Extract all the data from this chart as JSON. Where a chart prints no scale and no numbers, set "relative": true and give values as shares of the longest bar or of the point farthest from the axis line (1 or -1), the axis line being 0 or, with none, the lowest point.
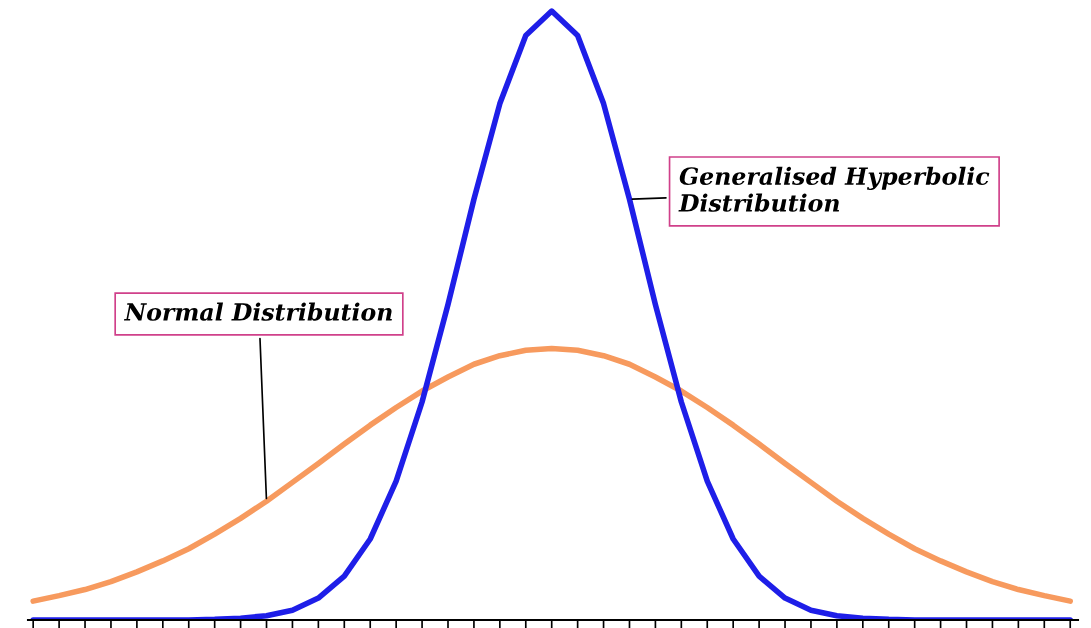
{
  "chart_data": {
    "type": "line",
    "relative": true,
    "legend": false,
    "grid": false,
    "marker": "none",
    "line_style": "solid",
    "categories": [
      null,
      null,
      null,
      null,
      null,
      null,
      null,
      null,
      null,
      null,
      null,
      null,
      null,
      null,
      null,
      null,
      null,
      null,
      null,
      null,
      null,
      null,
      null,
      null,
      null,
      null,
      null,
      null,
      null,
      null,
      null,
      null,
      null,
      null,
      null,
      null,
      null,
      null,
      null,
      null,
      null
    ],
    "series": [
      {
        "name": "Normal Distribution",
        "color": "#f79a5e",
        "values": [
          0.031,
          0.04,
          0.05,
          0.063,
          0.079,
          0.097,
          0.117,
          0.141,
          0.167,
          0.195,
          0.226,
          0.257,
          0.289,
          0.32,
          0.349,
          0.376,
          0.399,
          0.42,
          0.434,
          0.443,
          0.446,
          0.443,
          0.434,
          0.42,
          0.399,
          0.376,
          0.349,
          0.32,
          0.289,
          0.257,
          0.226,
          0.195,
          0.167,
          0.141,
          0.117,
          0.097,
          0.079,
          0.063,
          0.05,
          0.04,
          0.031
        ]
      },
      {
        "name": "Generalised Hyperbolic Distribution",
        "color": "#1e1ee8",
        "values": [
          0,
          0,
          0,
          0,
          0,
          0,
          0,
          0.001,
          0.003,
          0.007,
          0.016,
          0.036,
          0.072,
          0.133,
          0.228,
          0.358,
          0.518,
          0.691,
          0.848,
          0.96,
          1,
          0.96,
          0.848,
          0.691,
          0.518,
          0.358,
          0.228,
          0.133,
          0.072,
          0.036,
          0.016,
          0.007,
          0.003,
          0.001,
          0,
          0,
          0,
          0,
          0,
          0,
          0
        ]
      }
    ]
  }
}
